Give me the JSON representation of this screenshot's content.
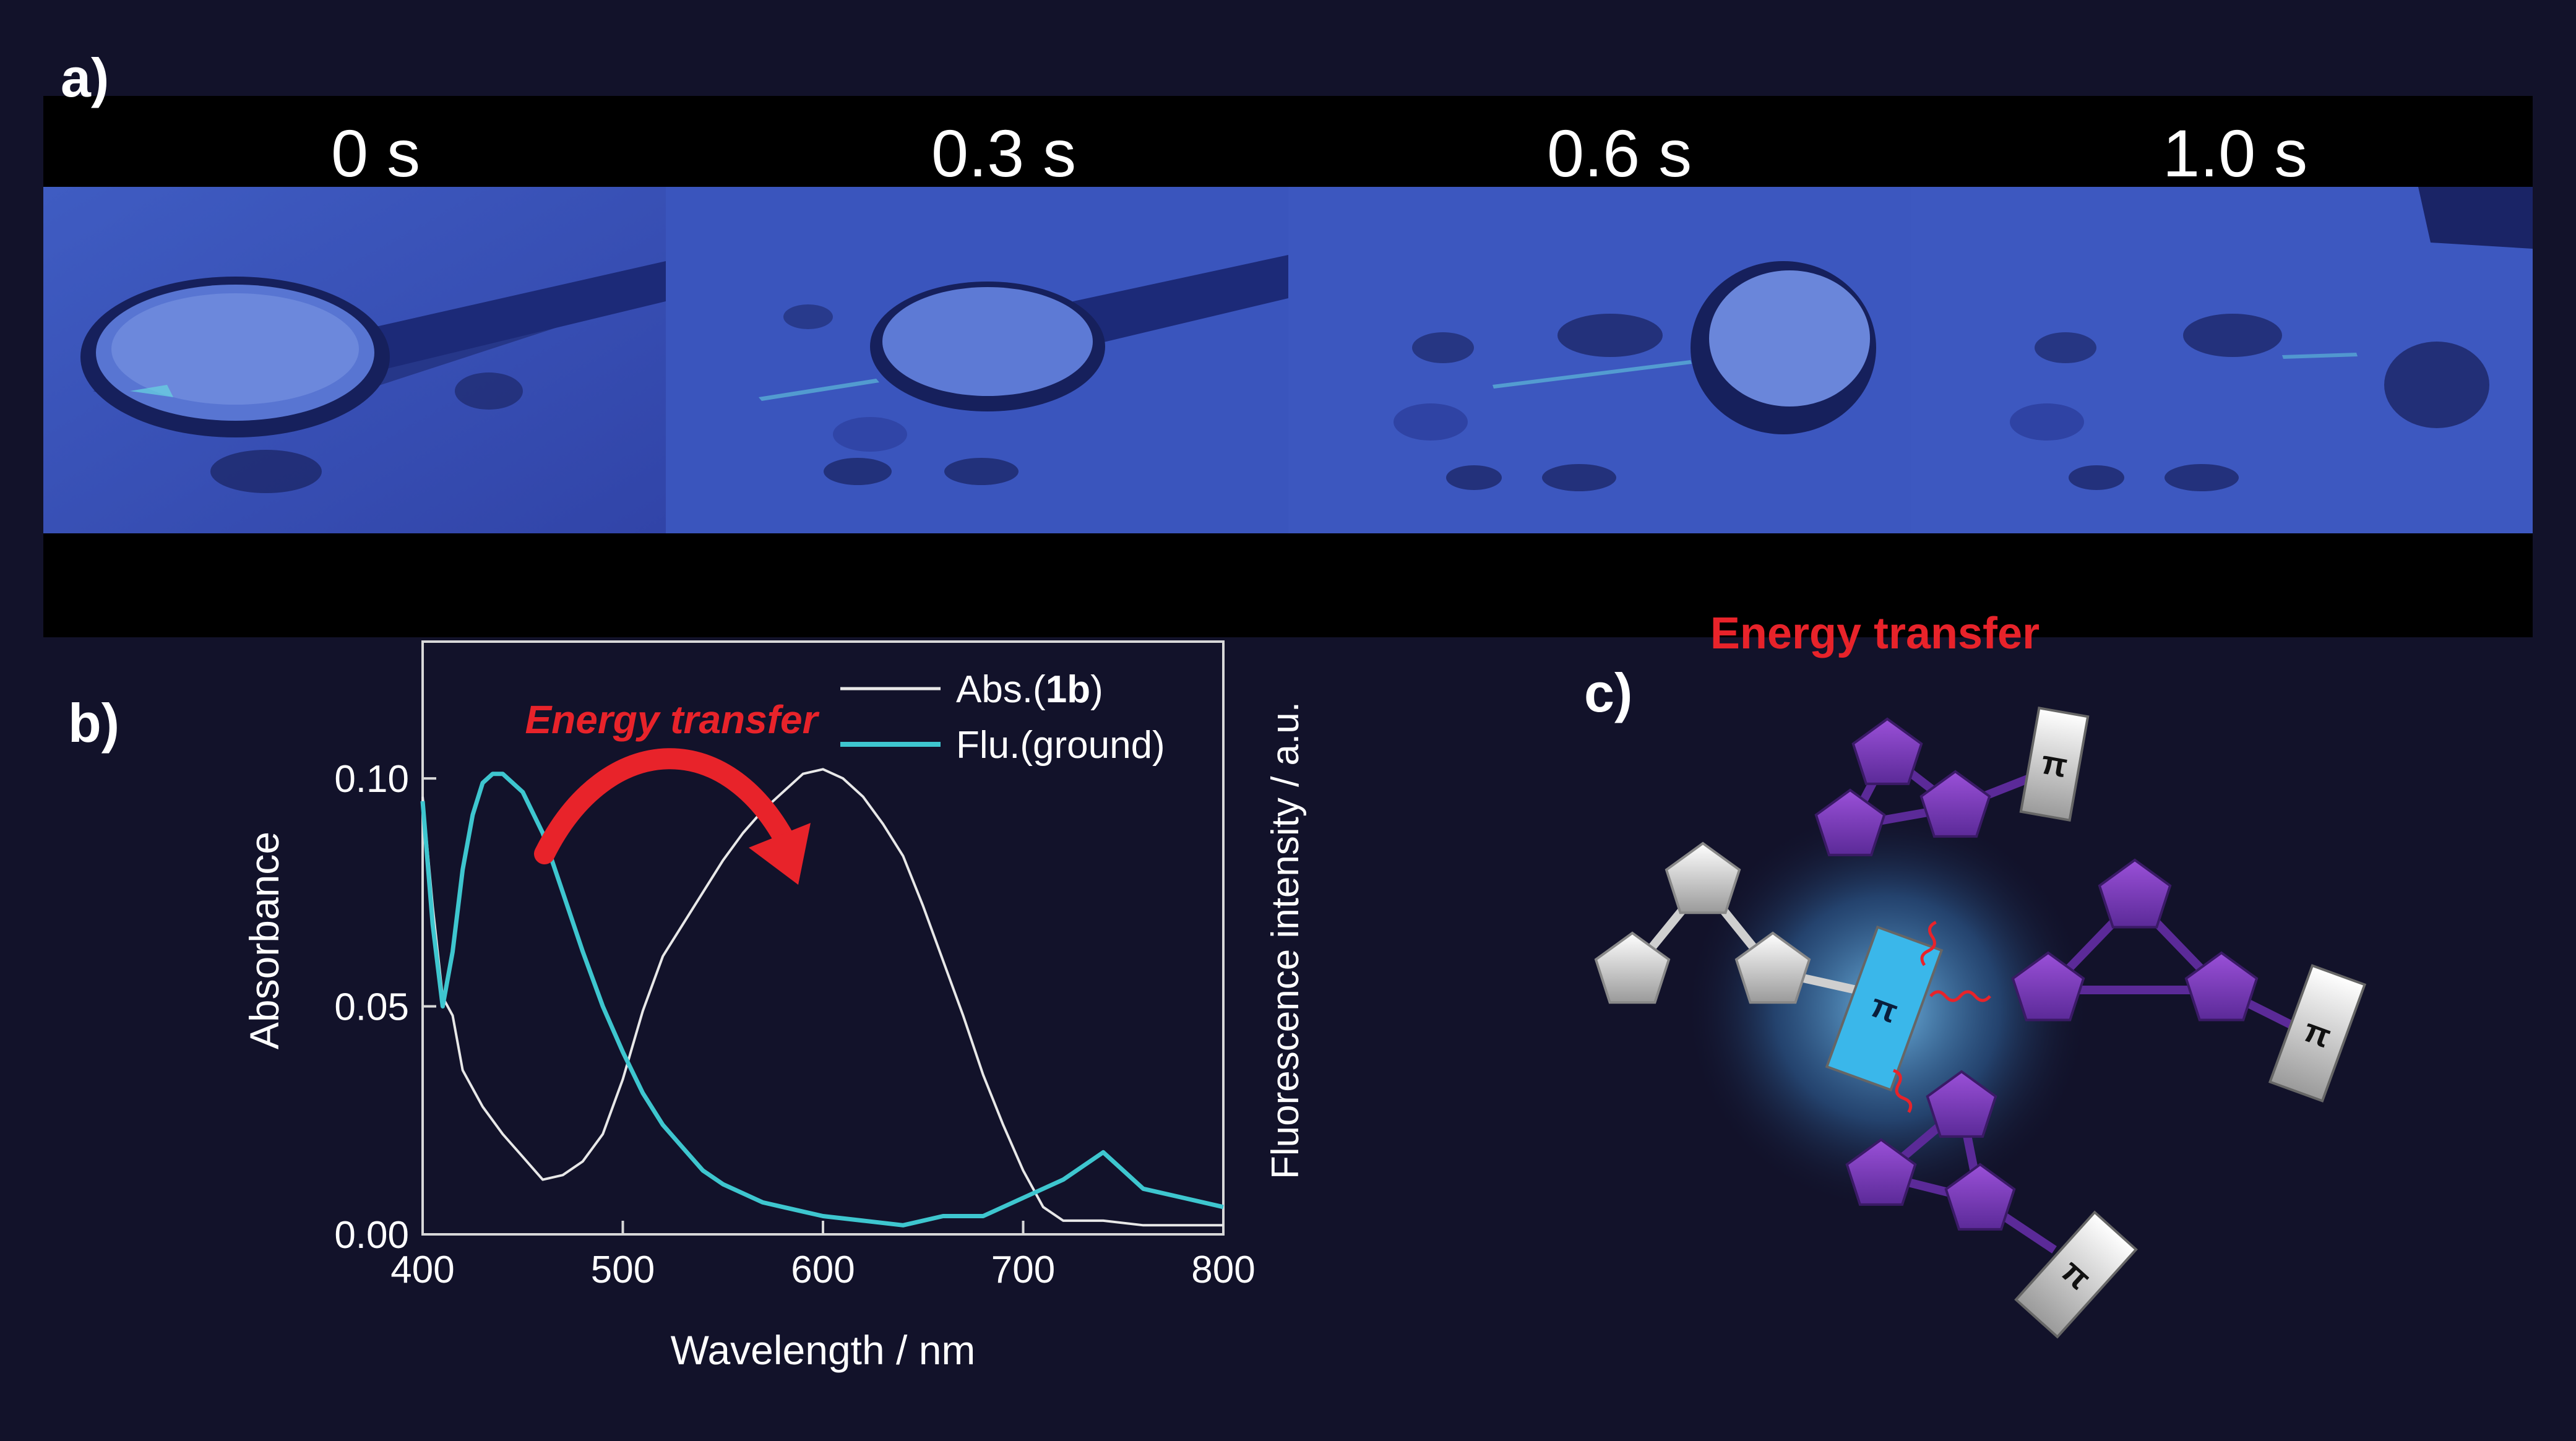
{
  "panels": {
    "a": "a)",
    "b": "b)",
    "c": "c)"
  },
  "frames": [
    {
      "time": "0 s"
    },
    {
      "time": "0.3 s"
    },
    {
      "time": "0.6 s"
    },
    {
      "time": "1.0 s"
    }
  ],
  "chart": {
    "energy_transfer": "Energy transfer",
    "legend": {
      "abs_prefix": "Abs.(",
      "abs_bold": "1b",
      "abs_suffix": ")",
      "flu": "Flu.(ground)"
    },
    "colors": {
      "abs": "#e8e8e8",
      "flu": "#3ec6cf",
      "arrow": "#e8232a"
    }
  },
  "chart_data": {
    "type": "line",
    "xlabel": "Wavelength / nm",
    "ylabel": "Absorbance",
    "ylabel_right": "Fluorescence intensity / a.u.",
    "xlim": [
      400,
      800
    ],
    "ylim": [
      0,
      0.13
    ],
    "xticks": [
      "400",
      "500",
      "600",
      "700",
      "800"
    ],
    "yticks": [
      "0.00",
      "0.05",
      "0.10"
    ],
    "series": [
      {
        "name": "Abs.(1b)",
        "x": [
          400,
          405,
          410,
          415,
          420,
          430,
          440,
          450,
          460,
          470,
          480,
          490,
          500,
          510,
          520,
          530,
          540,
          550,
          560,
          570,
          580,
          590,
          600,
          610,
          620,
          630,
          640,
          650,
          660,
          670,
          680,
          690,
          700,
          710,
          720,
          740,
          760,
          780,
          800
        ],
        "values": [
          0.096,
          0.072,
          0.052,
          0.048,
          0.036,
          0.028,
          0.022,
          0.017,
          0.012,
          0.013,
          0.016,
          0.022,
          0.034,
          0.049,
          0.061,
          0.068,
          0.075,
          0.082,
          0.088,
          0.093,
          0.097,
          0.101,
          0.102,
          0.1,
          0.096,
          0.09,
          0.083,
          0.072,
          0.06,
          0.048,
          0.035,
          0.024,
          0.014,
          0.006,
          0.003,
          0.003,
          0.002,
          0.002,
          0.002
        ]
      },
      {
        "name": "Flu.(ground)",
        "x": [
          400,
          405,
          410,
          415,
          420,
          425,
          430,
          435,
          440,
          450,
          460,
          470,
          480,
          490,
          500,
          510,
          520,
          530,
          540,
          550,
          560,
          570,
          580,
          590,
          600,
          620,
          640,
          660,
          680,
          700,
          720,
          740,
          760,
          780,
          800
        ],
        "values": [
          0.095,
          0.068,
          0.05,
          0.062,
          0.08,
          0.092,
          0.099,
          0.101,
          0.101,
          0.097,
          0.088,
          0.075,
          0.062,
          0.05,
          0.04,
          0.031,
          0.024,
          0.019,
          0.014,
          0.011,
          0.009,
          0.007,
          0.006,
          0.005,
          0.004,
          0.003,
          0.002,
          0.004,
          0.004,
          0.008,
          0.012,
          0.018,
          0.01,
          0.008,
          0.006
        ]
      }
    ]
  },
  "schematic": {
    "title": "Energy transfer",
    "pi": "π"
  }
}
